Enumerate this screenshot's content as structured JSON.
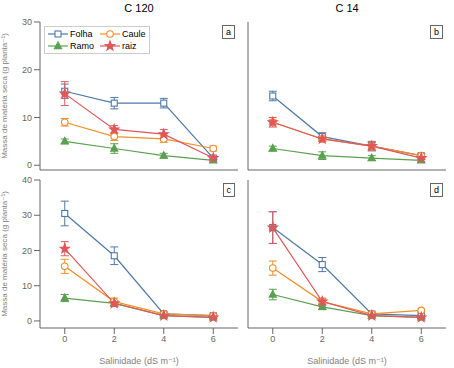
{
  "chart_data": [
    {
      "type": "line",
      "title": "C 120",
      "annotations": [
        "a"
      ],
      "ylabel": "Massa de matéria seca (g planta⁻¹)",
      "tick_labels": "y",
      "legend": "upper left",
      "grid": false,
      "x": [
        0,
        2,
        4,
        6
      ],
      "xlim": [
        -1,
        7
      ],
      "xticks": [
        0,
        2,
        4,
        6
      ],
      "ylim": [
        -1,
        30
      ],
      "yticks": [
        0,
        10,
        20,
        30
      ],
      "series": [
        {
          "name": "Folha",
          "color": "#4e79a7",
          "marker": "open square",
          "values": [
            15.5,
            13.0,
            13.0,
            1.5
          ],
          "errors": [
            1.5,
            1.2,
            1.0,
            0.4
          ]
        },
        {
          "name": "Caule",
          "color": "#f28e2b",
          "marker": "open circle",
          "values": [
            9.0,
            6.0,
            5.5,
            3.5
          ],
          "errors": [
            0.8,
            0.8,
            0.7,
            0.5
          ]
        },
        {
          "name": "Ramo",
          "color": "#59a14f",
          "marker": "triangle",
          "values": [
            5.0,
            3.5,
            2.0,
            1.0
          ],
          "errors": [
            0.5,
            1.0,
            0.5,
            0.3
          ]
        },
        {
          "name": "raiz",
          "color": "#e15759",
          "marker": "star",
          "values": [
            15.0,
            7.5,
            6.5,
            1.5
          ],
          "errors": [
            2.5,
            0.8,
            1.0,
            0.3
          ]
        }
      ]
    },
    {
      "type": "line",
      "title": "C 14",
      "annotations": [
        "b"
      ],
      "tick_labels": false,
      "grid": false,
      "x": [
        0,
        2,
        4,
        6
      ],
      "xlim": [
        -1,
        7
      ],
      "xticks": [
        0,
        2,
        4,
        6
      ],
      "ylim": [
        -1,
        30
      ],
      "yticks": [
        0,
        10,
        20,
        30
      ],
      "series": [
        {
          "name": "Folha",
          "color": "#4e79a7",
          "marker": "open square",
          "values": [
            14.5,
            6.0,
            4.0,
            2.0
          ],
          "errors": [
            1.0,
            0.8,
            1.0,
            0.4
          ]
        },
        {
          "name": "Caule",
          "color": "#f28e2b",
          "marker": "open circle",
          "values": [
            9.0,
            5.5,
            4.0,
            2.0
          ],
          "errors": [
            0.5,
            0.5,
            0.8,
            0.4
          ]
        },
        {
          "name": "Ramo",
          "color": "#59a14f",
          "marker": "triangle",
          "values": [
            3.5,
            2.0,
            1.5,
            1.0
          ],
          "errors": [
            0.5,
            0.8,
            0.5,
            0.3
          ]
        },
        {
          "name": "raiz",
          "color": "#e15759",
          "marker": "star",
          "values": [
            9.0,
            5.5,
            4.0,
            1.5
          ],
          "errors": [
            1.0,
            0.5,
            0.8,
            0.3
          ]
        }
      ]
    },
    {
      "type": "line",
      "annotations": [
        "c"
      ],
      "xlabel": "Salinidade (dS m⁻¹)",
      "ylabel": "Massa de matéria seca (g planta⁻¹)",
      "grid": false,
      "x": [
        0,
        2,
        4,
        6
      ],
      "xlim": [
        -1,
        7
      ],
      "xticks": [
        0,
        2,
        4,
        6
      ],
      "ylim": [
        -2,
        40
      ],
      "yticks": [
        0,
        10,
        20,
        30,
        40
      ],
      "series": [
        {
          "name": "Folha",
          "color": "#4e79a7",
          "marker": "open square",
          "values": [
            30.5,
            18.5,
            2.0,
            1.5
          ],
          "errors": [
            3.5,
            2.5,
            0.5,
            0.4
          ]
        },
        {
          "name": "Caule",
          "color": "#f28e2b",
          "marker": "open circle",
          "values": [
            15.5,
            5.5,
            2.0,
            1.5
          ],
          "errors": [
            2.0,
            1.0,
            0.5,
            0.4
          ]
        },
        {
          "name": "Ramo",
          "color": "#59a14f",
          "marker": "triangle",
          "values": [
            6.5,
            5.0,
            1.5,
            1.0
          ],
          "errors": [
            1.0,
            0.8,
            0.3,
            0.3
          ]
        },
        {
          "name": "raiz",
          "color": "#e15759",
          "marker": "star",
          "values": [
            20.5,
            5.0,
            1.5,
            1.0
          ],
          "errors": [
            2.0,
            0.8,
            0.3,
            0.3
          ]
        }
      ]
    },
    {
      "type": "line",
      "annotations": [
        "d"
      ],
      "xlabel": "Salinidade (dS m⁻¹)",
      "tick_labels": "x",
      "grid": false,
      "x": [
        0,
        2,
        4,
        6
      ],
      "xlim": [
        -1,
        7
      ],
      "xticks": [
        0,
        2,
        4,
        6
      ],
      "ylim": [
        -2,
        40
      ],
      "yticks": [
        0,
        10,
        20,
        30,
        40
      ],
      "series": [
        {
          "name": "Folha",
          "color": "#4e79a7",
          "marker": "open square",
          "values": [
            26.5,
            16.0,
            2.0,
            1.5
          ],
          "errors": [
            4.5,
            2.0,
            0.5,
            0.4
          ]
        },
        {
          "name": "Caule",
          "color": "#f28e2b",
          "marker": "open circle",
          "values": [
            15.0,
            5.5,
            2.0,
            3.0
          ],
          "errors": [
            2.0,
            1.0,
            0.5,
            0.4
          ]
        },
        {
          "name": "Ramo",
          "color": "#59a14f",
          "marker": "triangle",
          "values": [
            7.5,
            4.0,
            1.5,
            1.0
          ],
          "errors": [
            1.5,
            0.8,
            0.3,
            0.3
          ]
        },
        {
          "name": "raiz",
          "color": "#e15759",
          "marker": "star",
          "values": [
            26.5,
            5.5,
            1.5,
            1.0
          ],
          "errors": [
            4.5,
            0.8,
            0.3,
            0.3
          ]
        }
      ]
    }
  ]
}
